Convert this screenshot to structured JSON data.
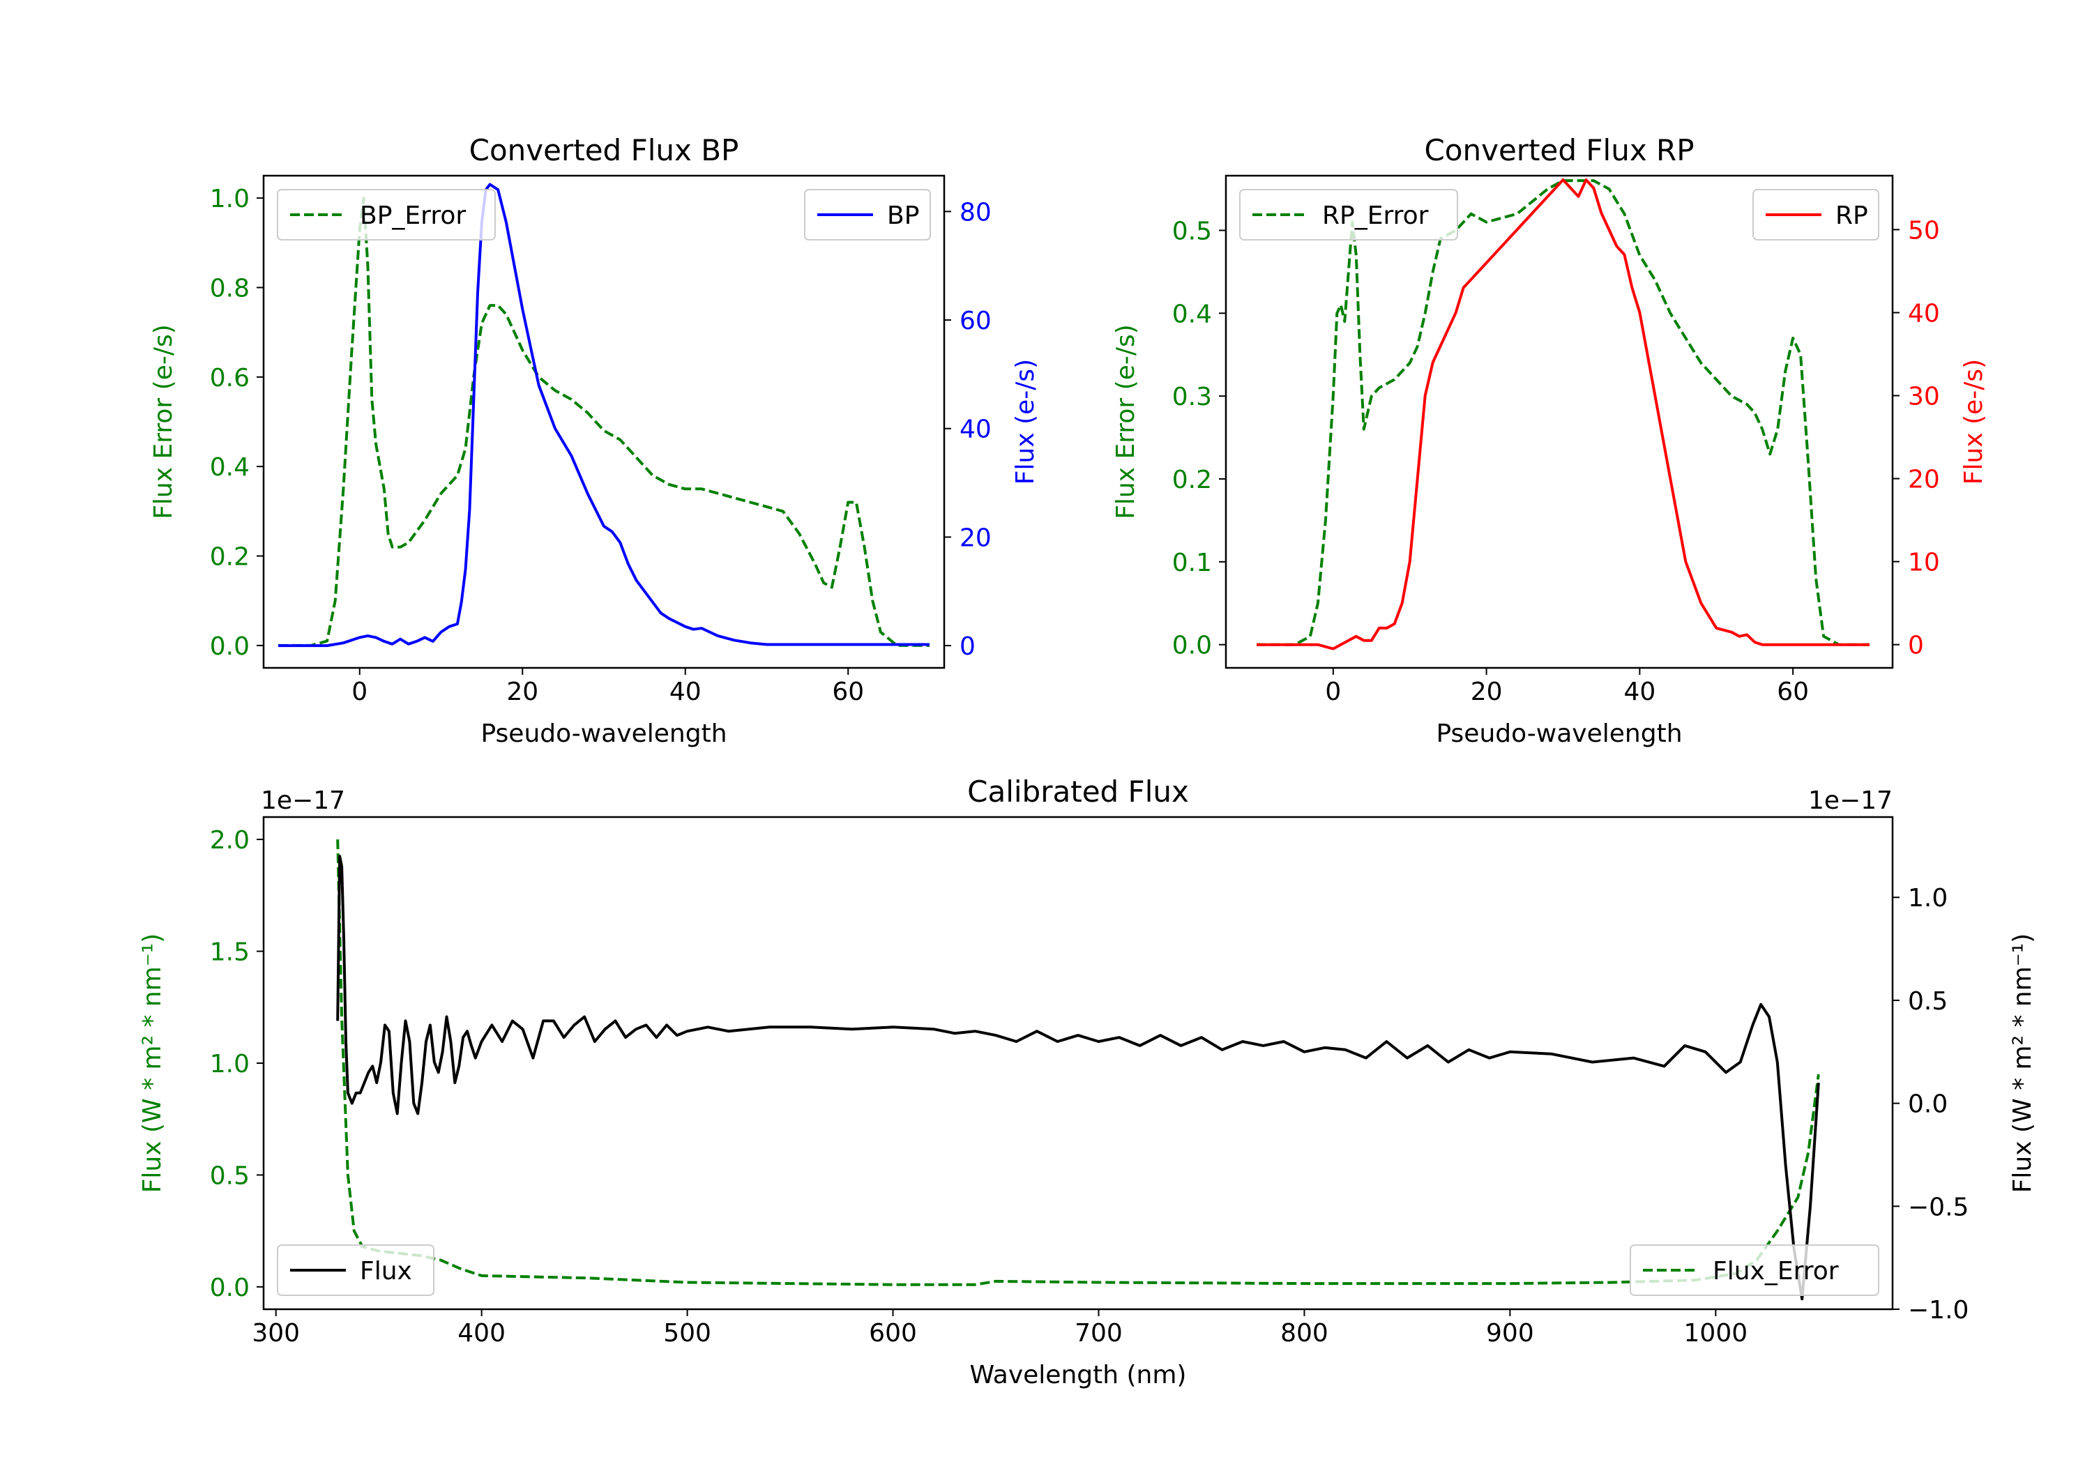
{
  "colors": {
    "green": "#008000",
    "blue": "#0000ff",
    "red": "#ff0000",
    "black": "#000000"
  },
  "chart_data": [
    {
      "id": "bp",
      "type": "line",
      "title": "Converted Flux BP",
      "xlabel": "Pseudo-wavelength",
      "ylabel_left": "Flux Error (e-/s)",
      "ylabel_right": "Flux (e-/s)",
      "xlim": [
        -11.8,
        71.8
      ],
      "ylim_left": [
        -0.05,
        1.05
      ],
      "ylim_right": [
        -4.1,
        86.6
      ],
      "xticks": [
        0,
        20,
        40,
        60
      ],
      "xtick_labels": [
        "0",
        "20",
        "40",
        "60"
      ],
      "yticks_left": [
        0.0,
        0.2,
        0.4,
        0.6,
        0.8,
        1.0
      ],
      "ytick_labels_left": [
        "0.0",
        "0.2",
        "0.4",
        "0.6",
        "0.8",
        "1.0"
      ],
      "yticks_right": [
        0,
        20,
        40,
        60,
        80
      ],
      "ytick_labels_right": [
        "0",
        "20",
        "40",
        "60",
        "80"
      ],
      "legend_left": "BP_Error",
      "legend_right": "BP",
      "legend_left_placement": "upper left",
      "legend_right_placement": "upper right",
      "series": [
        {
          "name": "BP_Error",
          "axis": "left",
          "color": "#008000",
          "style": "dashed",
          "x": [
            -10,
            -6,
            -4,
            -3,
            -2,
            -1,
            0,
            0.5,
            1,
            1.5,
            2,
            3,
            3.5,
            4,
            5,
            6,
            8,
            10,
            12,
            13,
            14,
            15,
            16,
            17,
            18,
            19,
            20,
            22,
            24,
            26,
            28,
            30,
            32,
            34,
            36,
            38,
            40,
            42,
            44,
            46,
            48,
            50,
            52,
            54,
            56,
            57,
            58,
            59,
            60,
            61,
            62,
            63,
            64,
            66,
            70
          ],
          "values": [
            0.0,
            0.0,
            0.01,
            0.1,
            0.35,
            0.65,
            0.93,
            1.0,
            0.85,
            0.55,
            0.45,
            0.35,
            0.25,
            0.22,
            0.22,
            0.23,
            0.28,
            0.34,
            0.38,
            0.44,
            0.6,
            0.72,
            0.76,
            0.76,
            0.74,
            0.7,
            0.66,
            0.6,
            0.57,
            0.55,
            0.52,
            0.48,
            0.46,
            0.42,
            0.38,
            0.36,
            0.35,
            0.35,
            0.34,
            0.33,
            0.32,
            0.31,
            0.3,
            0.25,
            0.18,
            0.14,
            0.13,
            0.22,
            0.32,
            0.32,
            0.22,
            0.1,
            0.03,
            0.0,
            0.0
          ]
        },
        {
          "name": "BP",
          "axis": "right",
          "color": "#0000ff",
          "style": "solid",
          "x": [
            -10,
            -4,
            -2,
            -1,
            0,
            1,
            2,
            3,
            4,
            5,
            6,
            7,
            8,
            9,
            10,
            11,
            12,
            12.5,
            13,
            13.5,
            14,
            14.5,
            15,
            15.5,
            16,
            17,
            18,
            19,
            20,
            21,
            22,
            24,
            26,
            28,
            30,
            31,
            32,
            33,
            34,
            36,
            37,
            38,
            40,
            41,
            42,
            44,
            46,
            48,
            50,
            60,
            70
          ],
          "values": [
            0,
            0,
            0.5,
            1,
            1.5,
            1.8,
            1.5,
            0.8,
            0.3,
            1.2,
            0.3,
            0.8,
            1.5,
            0.8,
            2.5,
            3.5,
            4,
            8,
            14,
            25,
            45,
            65,
            78,
            84,
            85,
            84,
            78,
            70,
            62,
            55,
            48,
            40,
            35,
            28,
            22,
            21,
            19,
            15,
            12,
            8,
            6,
            5,
            3.5,
            3,
            3.2,
            1.8,
            1,
            0.5,
            0.2,
            0.2,
            0.2
          ]
        }
      ]
    },
    {
      "id": "rp",
      "type": "line",
      "title": "Converted Flux RP",
      "xlabel": "Pseudo-wavelength",
      "ylabel_left": "Flux Error (e-/s)",
      "ylabel_right": "Flux (e-/s)",
      "xlim": [
        -14,
        73
      ],
      "ylim_left": [
        -0.028,
        0.566
      ],
      "ylim_right": [
        -2.8,
        56.5
      ],
      "xticks": [
        0,
        20,
        40,
        60
      ],
      "xtick_labels": [
        "0",
        "20",
        "40",
        "60"
      ],
      "yticks_left": [
        0.0,
        0.1,
        0.2,
        0.3,
        0.4,
        0.5
      ],
      "ytick_labels_left": [
        "0.0",
        "0.1",
        "0.2",
        "0.3",
        "0.4",
        "0.5"
      ],
      "yticks_right": [
        0,
        10,
        20,
        30,
        40,
        50
      ],
      "ytick_labels_right": [
        "0",
        "10",
        "20",
        "30",
        "40",
        "50"
      ],
      "legend_left": "RP_Error",
      "legend_right": "RP",
      "legend_left_placement": "upper left",
      "legend_right_placement": "upper right",
      "series": [
        {
          "name": "RP_Error",
          "axis": "left",
          "color": "#008000",
          "style": "dashed",
          "x": [
            -10,
            -5,
            -3,
            -2,
            -1,
            0,
            0.5,
            1,
            1.5,
            2,
            2.5,
            3,
            3.5,
            4,
            4.5,
            5,
            6,
            8,
            10,
            11,
            12,
            13,
            14,
            16,
            18,
            20,
            24,
            28,
            30,
            32,
            34,
            36,
            38,
            40,
            42,
            44,
            46,
            48,
            50,
            52,
            54,
            55,
            56,
            57,
            58,
            59,
            60,
            61,
            62,
            63,
            64,
            66,
            70
          ],
          "values": [
            0.0,
            0.0,
            0.01,
            0.05,
            0.15,
            0.3,
            0.4,
            0.41,
            0.39,
            0.45,
            0.51,
            0.47,
            0.35,
            0.26,
            0.28,
            0.3,
            0.31,
            0.32,
            0.34,
            0.36,
            0.4,
            0.45,
            0.49,
            0.5,
            0.52,
            0.51,
            0.52,
            0.55,
            0.56,
            0.56,
            0.56,
            0.55,
            0.52,
            0.47,
            0.44,
            0.4,
            0.37,
            0.34,
            0.32,
            0.3,
            0.29,
            0.28,
            0.26,
            0.23,
            0.26,
            0.33,
            0.37,
            0.35,
            0.22,
            0.08,
            0.01,
            0.0,
            0.0
          ]
        },
        {
          "name": "RP",
          "axis": "right",
          "color": "#ff0000",
          "style": "solid",
          "x": [
            -10,
            -6,
            -4,
            -2,
            0,
            1,
            2,
            3,
            4,
            5,
            6,
            7,
            8,
            9,
            10,
            11,
            12,
            13,
            14,
            15,
            16,
            17,
            18,
            19,
            20,
            22,
            24,
            26,
            28,
            30,
            31,
            32,
            33,
            34,
            35,
            36,
            37,
            38,
            39,
            40,
            41,
            42,
            43,
            44,
            45,
            46,
            48,
            50,
            52,
            53,
            54,
            55,
            56,
            58,
            60,
            62,
            64,
            66,
            70
          ],
          "values": [
            0,
            0,
            0,
            0,
            -0.5,
            0,
            0.5,
            1,
            0.5,
            0.5,
            2,
            2,
            2.5,
            5,
            10,
            20,
            30,
            34,
            36,
            38,
            40,
            43,
            44,
            45,
            46,
            48,
            50,
            52,
            54,
            56,
            55,
            54,
            56,
            55,
            52,
            50,
            48,
            47,
            43,
            40,
            35,
            30,
            25,
            20,
            15,
            10,
            5,
            2,
            1.5,
            1,
            1.2,
            0.3,
            0,
            0,
            0,
            0,
            0,
            0,
            0
          ]
        }
      ]
    },
    {
      "id": "cal",
      "type": "line",
      "title": "Calibrated Flux",
      "xlabel": "Wavelength (nm)",
      "ylabel_left": "Flux (W * m² * nm⁻¹)",
      "ylabel_right": "Flux (W * m² * nm⁻¹)",
      "offset_left": "1e−17",
      "offset_right": "1e−17",
      "xlim": [
        294,
        1086
      ],
      "ylim_left": [
        -0.1,
        2.1
      ],
      "ylim_right": [
        -1.0,
        1.39
      ],
      "xticks": [
        300,
        400,
        500,
        600,
        700,
        800,
        900,
        1000
      ],
      "xtick_labels": [
        "300",
        "400",
        "500",
        "600",
        "700",
        "800",
        "900",
        "1000"
      ],
      "yticks_left": [
        0.0,
        0.5,
        1.0,
        1.5,
        2.0
      ],
      "ytick_labels_left": [
        "0.0",
        "0.5",
        "1.0",
        "1.5",
        "2.0"
      ],
      "yticks_right": [
        -1.0,
        -0.5,
        0.0,
        0.5,
        1.0
      ],
      "ytick_labels_right": [
        "−1.0",
        "−0.5",
        "0.0",
        "0.5",
        "1.0"
      ],
      "legend_left": "Flux",
      "legend_right": "Flux_Error",
      "legend_left_placement": "lower left",
      "legend_right_placement": "lower right",
      "series": [
        {
          "name": "Flux_Error",
          "axis": "left",
          "color": "#008000",
          "style": "dashed",
          "x": [
            330,
            332,
            335,
            338,
            342,
            350,
            360,
            370,
            380,
            390,
            400,
            450,
            500,
            550,
            600,
            640,
            650,
            700,
            800,
            900,
            950,
            990,
            1010,
            1020,
            1030,
            1040,
            1045,
            1050
          ],
          "values": [
            2.0,
            1.2,
            0.5,
            0.25,
            0.18,
            0.16,
            0.15,
            0.14,
            0.12,
            0.08,
            0.05,
            0.04,
            0.02,
            0.015,
            0.01,
            0.01,
            0.025,
            0.02,
            0.015,
            0.015,
            0.02,
            0.03,
            0.06,
            0.12,
            0.25,
            0.4,
            0.6,
            0.95
          ]
        },
        {
          "name": "Flux",
          "axis": "right",
          "color": "#000000",
          "style": "solid",
          "x": [
            330,
            331,
            332,
            333,
            334,
            335,
            337,
            339,
            341,
            343,
            345,
            347,
            349,
            351,
            353,
            355,
            357,
            359,
            361,
            363,
            365,
            367,
            369,
            371,
            373,
            375,
            377,
            379,
            381,
            383,
            385,
            387,
            389,
            391,
            393,
            395,
            397,
            400,
            405,
            410,
            415,
            420,
            425,
            430,
            435,
            440,
            445,
            450,
            455,
            460,
            465,
            470,
            475,
            480,
            485,
            490,
            495,
            500,
            510,
            520,
            530,
            540,
            560,
            580,
            600,
            620,
            630,
            640,
            650,
            660,
            670,
            680,
            690,
            700,
            710,
            720,
            730,
            740,
            750,
            760,
            770,
            780,
            790,
            800,
            810,
            820,
            830,
            840,
            850,
            860,
            870,
            880,
            890,
            900,
            920,
            940,
            960,
            975,
            985,
            995,
            1005,
            1012,
            1018,
            1022,
            1026,
            1030,
            1034,
            1038,
            1042,
            1046,
            1050
          ],
          "values": [
            0.4,
            1.2,
            1.15,
            0.8,
            0.3,
            0.05,
            0.0,
            0.05,
            0.05,
            0.1,
            0.15,
            0.18,
            0.1,
            0.2,
            0.38,
            0.35,
            0.05,
            -0.05,
            0.2,
            0.4,
            0.3,
            0.0,
            -0.05,
            0.1,
            0.3,
            0.38,
            0.2,
            0.15,
            0.25,
            0.42,
            0.3,
            0.1,
            0.18,
            0.32,
            0.35,
            0.28,
            0.22,
            0.3,
            0.38,
            0.3,
            0.4,
            0.36,
            0.22,
            0.4,
            0.4,
            0.32,
            0.38,
            0.42,
            0.3,
            0.36,
            0.4,
            0.32,
            0.36,
            0.38,
            0.32,
            0.38,
            0.33,
            0.35,
            0.37,
            0.35,
            0.36,
            0.37,
            0.37,
            0.36,
            0.37,
            0.36,
            0.34,
            0.35,
            0.33,
            0.3,
            0.35,
            0.3,
            0.33,
            0.3,
            0.32,
            0.28,
            0.33,
            0.28,
            0.32,
            0.26,
            0.3,
            0.28,
            0.3,
            0.25,
            0.27,
            0.26,
            0.22,
            0.3,
            0.22,
            0.28,
            0.2,
            0.26,
            0.22,
            0.25,
            0.24,
            0.2,
            0.22,
            0.18,
            0.28,
            0.25,
            0.15,
            0.2,
            0.38,
            0.48,
            0.42,
            0.2,
            -0.3,
            -0.7,
            -0.95,
            -0.5,
            0.1
          ]
        }
      ]
    }
  ]
}
